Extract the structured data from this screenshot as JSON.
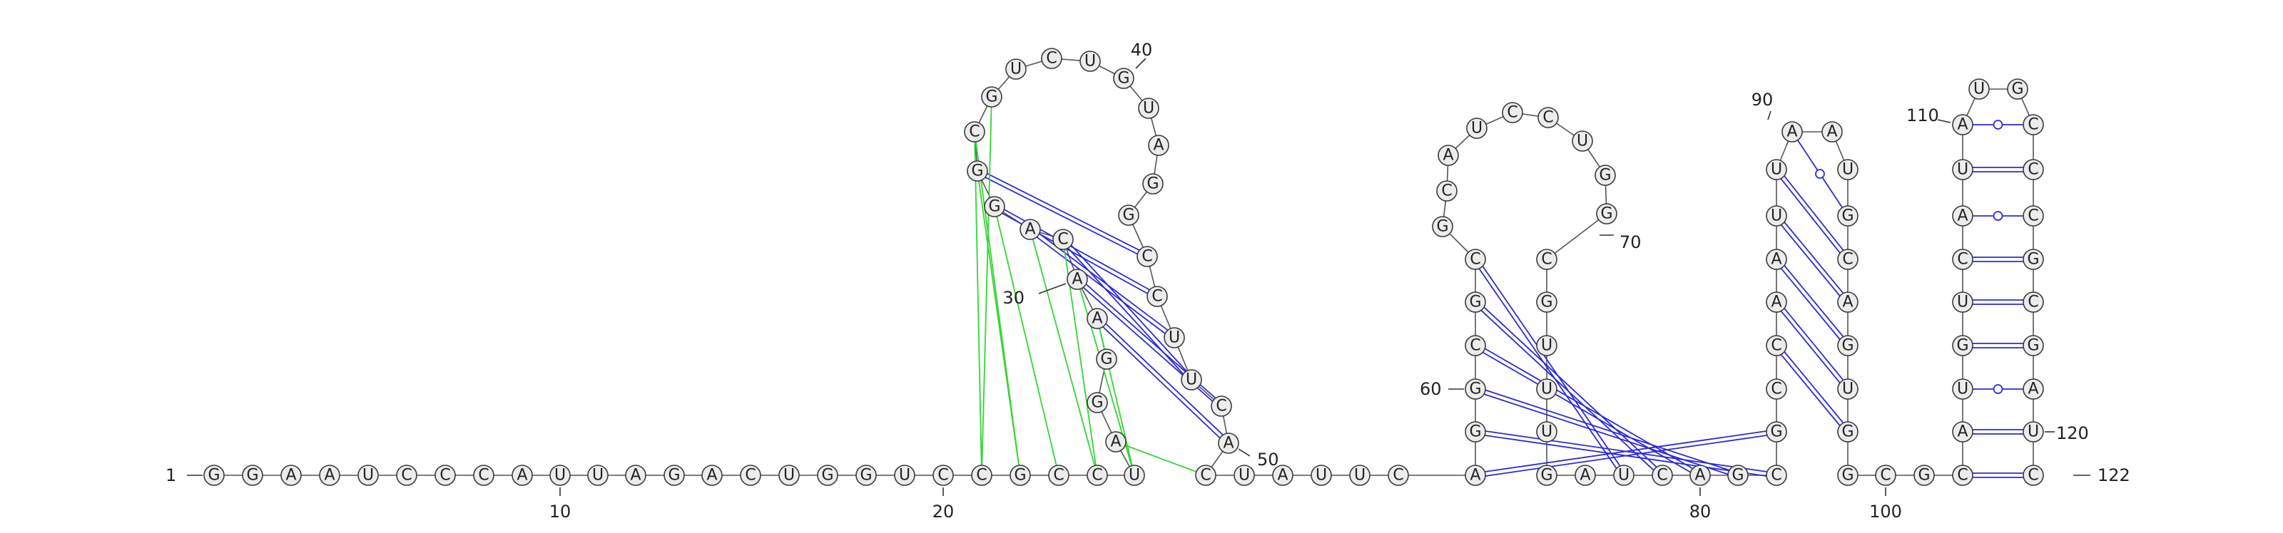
{
  "sequence": "GGAAUCCCAUUAGACUGGUCCGCCUAGGAACAGGCGUCUGUAGGCCUUCACUAUUCAGGCGCGCAUCCUGGCGUUUGAUCAGCGCCAAUUAAUGCAGUGGCGCAUGUCAUAUGCCCGCGAUC",
  "length": 122,
  "sequence_numbers": [
    {
      "label": "1",
      "position": 1
    },
    {
      "label": "10",
      "position": 10
    },
    {
      "label": "20",
      "position": 20
    },
    {
      "label": "30",
      "position": 30
    },
    {
      "label": "40",
      "position": 40
    },
    {
      "label": "50",
      "position": 50
    },
    {
      "label": "60",
      "position": 60
    },
    {
      "label": "70",
      "position": 70
    },
    {
      "label": "80",
      "position": 80
    },
    {
      "label": "90",
      "position": 90
    },
    {
      "label": "100",
      "position": 100
    },
    {
      "label": "110",
      "position": 110
    },
    {
      "label": "120",
      "position": 120
    },
    {
      "label": "122",
      "position": 122
    }
  ],
  "base_pairs": [
    {
      "i": 29,
      "j": 50,
      "type": "wc"
    },
    {
      "i": 30,
      "j": 49,
      "type": "wc"
    },
    {
      "i": 31,
      "j": 48,
      "type": "wc"
    },
    {
      "i": 32,
      "j": 47,
      "type": "wc"
    },
    {
      "i": 33,
      "j": 46,
      "type": "wc"
    },
    {
      "i": 34,
      "j": 45,
      "type": "wc"
    },
    {
      "i": 57,
      "j": 84,
      "type": "wc"
    },
    {
      "i": 58,
      "j": 83,
      "type": "wc"
    },
    {
      "i": 59,
      "j": 82,
      "type": "wc"
    },
    {
      "i": 60,
      "j": 81,
      "type": "wc"
    },
    {
      "i": 61,
      "j": 80,
      "type": "wc"
    },
    {
      "i": 62,
      "j": 79,
      "type": "wc"
    },
    {
      "i": 86,
      "j": 99,
      "type": "wc"
    },
    {
      "i": 87,
      "j": 98,
      "type": "wc"
    },
    {
      "i": 88,
      "j": 97,
      "type": "wc"
    },
    {
      "i": 89,
      "j": 96,
      "type": "wc"
    },
    {
      "i": 90,
      "j": 95,
      "type": "wc"
    },
    {
      "i": 91,
      "j": 94,
      "type": "gu"
    },
    {
      "i": 103,
      "j": 122,
      "type": "wc"
    },
    {
      "i": 104,
      "j": 121,
      "type": "wc"
    },
    {
      "i": 105,
      "j": 120,
      "type": "gu"
    },
    {
      "i": 106,
      "j": 119,
      "type": "wc"
    },
    {
      "i": 107,
      "j": 118,
      "type": "wc"
    },
    {
      "i": 108,
      "j": 117,
      "type": "wc"
    },
    {
      "i": 109,
      "j": 116,
      "type": "gu"
    },
    {
      "i": 110,
      "j": 115,
      "type": "wc"
    },
    {
      "i": 111,
      "j": 114,
      "type": "gu"
    }
  ],
  "pseudoknot_pairs": [
    {
      "i": 21,
      "j": 26
    },
    {
      "i": 22,
      "j": 27
    },
    {
      "i": 23,
      "j": 28
    }
  ],
  "colors": {
    "canonical_pair": "#2b2bd6",
    "wobble_pair": "#2b2bd6",
    "pseudoknot": "#33d633",
    "nucleotide_fill": "#ececec",
    "nucleotide_stroke": "#3a3a3a"
  }
}
